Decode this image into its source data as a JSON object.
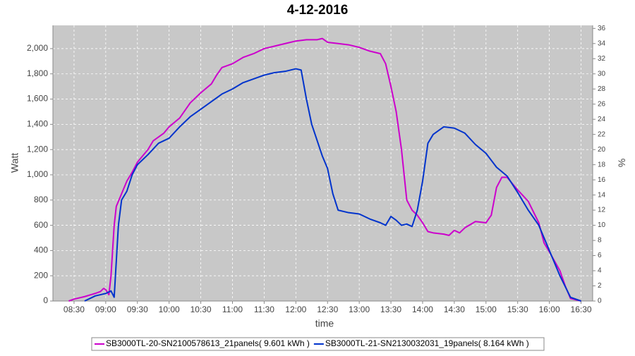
{
  "chart_data": {
    "type": "line",
    "title": "4-12-2016",
    "x_label": "time",
    "y_label": "Watt",
    "y2_label": "%",
    "xlim": [
      490,
      1001
    ],
    "xticks": [
      {
        "value": 510,
        "label": "08:30"
      },
      {
        "value": 540,
        "label": "09:00"
      },
      {
        "value": 570,
        "label": "09:30"
      },
      {
        "value": 600,
        "label": "10:00"
      },
      {
        "value": 630,
        "label": "10:30"
      },
      {
        "value": 660,
        "label": "11:00"
      },
      {
        "value": 690,
        "label": "11:30"
      },
      {
        "value": 720,
        "label": "12:00"
      },
      {
        "value": 750,
        "label": "12:30"
      },
      {
        "value": 780,
        "label": "13:00"
      },
      {
        "value": 810,
        "label": "13:30"
      },
      {
        "value": 840,
        "label": "14:00"
      },
      {
        "value": 870,
        "label": "14:30"
      },
      {
        "value": 900,
        "label": "15:00"
      },
      {
        "value": 930,
        "label": "15:30"
      },
      {
        "value": 960,
        "label": "16:00"
      },
      {
        "value": 990,
        "label": "16:30"
      }
    ],
    "ylim": [
      0,
      2184
    ],
    "yticks": [
      0,
      200,
      400,
      600,
      800,
      {
        "value": 1000,
        "label": "1,000"
      },
      {
        "value": 1200,
        "label": "1,200"
      },
      {
        "value": 1400,
        "label": "1,400"
      },
      {
        "value": 1600,
        "label": "1,600"
      },
      {
        "value": 1800,
        "label": "1,800"
      },
      {
        "value": 2000,
        "label": "2,000"
      }
    ],
    "y2lim": [
      0,
      36.4
    ],
    "y2ticks": [
      0,
      2,
      4,
      6,
      8,
      10,
      12,
      14,
      16,
      18,
      20,
      22,
      24,
      26,
      28,
      30,
      32,
      34,
      36
    ],
    "grid": true,
    "legend": "bottom",
    "series": [
      {
        "name": "SB3000TL-20-SN2100578613_21panels( 9.601 kWh )",
        "color": "#cc00cc",
        "x": [
          505,
          510,
          520,
          530,
          535,
          538,
          540,
          543,
          545,
          548,
          550,
          555,
          560,
          565,
          570,
          580,
          585,
          595,
          600,
          610,
          620,
          630,
          640,
          645,
          650,
          660,
          670,
          680,
          690,
          700,
          710,
          720,
          730,
          740,
          745,
          750,
          760,
          770,
          780,
          790,
          800,
          805,
          810,
          815,
          820,
          825,
          830,
          835,
          840,
          845,
          850,
          860,
          865,
          870,
          875,
          880,
          890,
          900,
          905,
          910,
          915,
          920,
          930,
          940,
          950,
          955,
          960,
          970,
          975,
          980,
          990
        ],
        "values": [
          0,
          15,
          35,
          60,
          75,
          100,
          90,
          50,
          200,
          600,
          750,
          850,
          950,
          1020,
          1100,
          1200,
          1270,
          1330,
          1380,
          1450,
          1570,
          1650,
          1720,
          1790,
          1850,
          1880,
          1930,
          1960,
          2000,
          2020,
          2040,
          2060,
          2070,
          2070,
          2080,
          2050,
          2040,
          2030,
          2010,
          1980,
          1960,
          1880,
          1700,
          1500,
          1200,
          800,
          720,
          680,
          620,
          550,
          540,
          530,
          520,
          560,
          540,
          580,
          630,
          620,
          680,
          900,
          980,
          980,
          880,
          790,
          620,
          460,
          390,
          240,
          120,
          20,
          0
        ]
      },
      {
        "name": "SB3000TL-21-SN2130032031_19panels( 8.164 kWh )",
        "color": "#0033cc",
        "x": [
          520,
          530,
          535,
          540,
          545,
          548,
          552,
          555,
          560,
          565,
          570,
          580,
          590,
          600,
          610,
          620,
          630,
          640,
          650,
          660,
          670,
          680,
          690,
          700,
          710,
          720,
          725,
          730,
          735,
          745,
          750,
          755,
          760,
          770,
          780,
          790,
          800,
          805,
          810,
          815,
          820,
          825,
          830,
          835,
          840,
          845,
          850,
          860,
          870,
          880,
          890,
          900,
          910,
          920,
          930,
          940,
          950,
          960,
          970,
          980,
          990
        ],
        "values": [
          0,
          40,
          50,
          60,
          80,
          30,
          600,
          800,
          870,
          1000,
          1080,
          1160,
          1250,
          1290,
          1380,
          1460,
          1520,
          1580,
          1640,
          1680,
          1730,
          1760,
          1790,
          1810,
          1820,
          1840,
          1830,
          1600,
          1400,
          1150,
          1050,
          850,
          720,
          700,
          690,
          650,
          620,
          600,
          670,
          640,
          600,
          610,
          590,
          720,
          950,
          1250,
          1320,
          1380,
          1370,
          1330,
          1240,
          1170,
          1060,
          990,
          860,
          720,
          600,
          400,
          200,
          30,
          0
        ]
      }
    ]
  }
}
